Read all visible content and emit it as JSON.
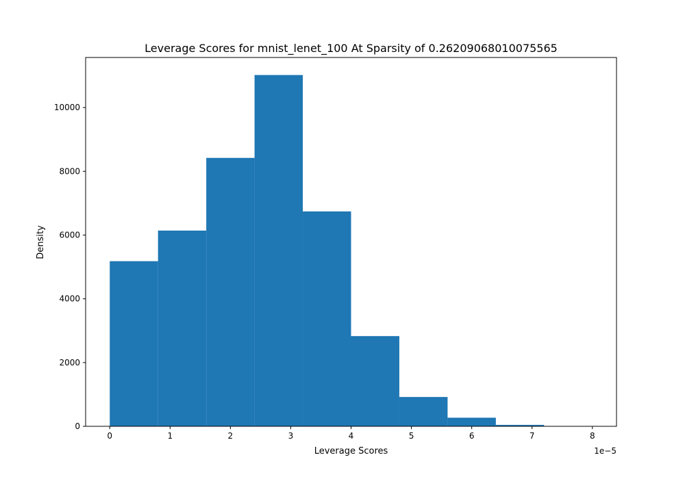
{
  "chart_data": {
    "type": "bar",
    "subtype": "histogram",
    "title": "Leverage Scores for mnist_lenet_100 At Sparsity of 0.26209068010075565",
    "xlabel": "Leverage Scores",
    "ylabel": "Density",
    "x_offset_label": "1e−5",
    "x_scale": 1e-05,
    "bin_edges": [
      0,
      0.8,
      1.6,
      2.4,
      3.2,
      4.0,
      4.8,
      5.6,
      6.4,
      7.2,
      8.0
    ],
    "values": [
      5180,
      6140,
      8420,
      11020,
      6740,
      2830,
      920,
      270,
      45,
      5
    ],
    "xlim": [
      -0.4,
      8.4
    ],
    "ylim": [
      0,
      11570
    ],
    "xticks": [
      0,
      1,
      2,
      3,
      4,
      5,
      6,
      7,
      8
    ],
    "xtick_labels": [
      "0",
      "1",
      "2",
      "3",
      "4",
      "5",
      "6",
      "7",
      "8"
    ],
    "yticks": [
      0,
      2000,
      4000,
      6000,
      8000,
      10000
    ],
    "ytick_labels": [
      "0",
      "2000",
      "4000",
      "6000",
      "8000",
      "10000"
    ],
    "bar_color": "#1f77b4",
    "grid": false,
    "legend": "none"
  }
}
